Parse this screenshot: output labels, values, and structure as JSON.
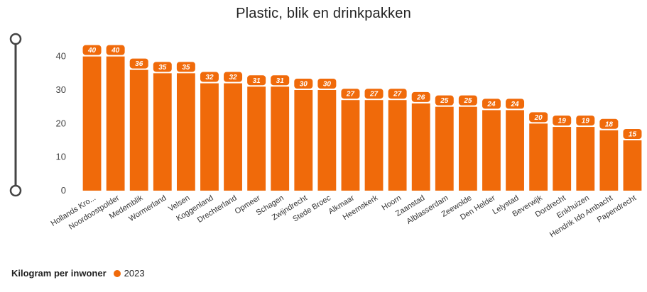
{
  "colors": {
    "bar": "#F06A0A",
    "axis_text": "#444444",
    "slider": "#444444"
  },
  "slider": {
    "icon": "range-slider-icon"
  },
  "legend": {
    "title": "Kilogram per inwoner",
    "series_label": "2023"
  },
  "chart_data": {
    "type": "bar",
    "title": "Plastic, blik en drinkpakken",
    "xlabel": "",
    "ylabel": "",
    "ylim": [
      0,
      45
    ],
    "yticks": [
      0,
      10,
      20,
      30,
      40
    ],
    "grid": false,
    "legend_position": "bottom-left",
    "categories": [
      "Hollands Kro...",
      "Noordoostpolder",
      "Medemblik",
      "Wormerland",
      "Velsen",
      "Koggenland",
      "Drechterland",
      "Opmeer",
      "Schagen",
      "Zwijndrecht",
      "Stede Broec",
      "Alkmaar",
      "Heemskerk",
      "Hoorn",
      "Zaanstad",
      "Alblasserdam",
      "Zeewolde",
      "Den Helder",
      "Lelystad",
      "Beverwijk",
      "Dordrecht",
      "Enkhuizen",
      "Hendrik Ido Ambacht",
      "Papendrecht"
    ],
    "series": [
      {
        "name": "2023",
        "values": [
          40,
          40,
          36,
          35,
          35,
          32,
          32,
          31,
          31,
          30,
          30,
          27,
          27,
          27,
          26,
          25,
          25,
          24,
          24,
          20,
          19,
          19,
          18,
          15
        ],
        "labels": [
          "40",
          "40",
          "36",
          "35",
          "35",
          "32",
          "32",
          "31",
          "31",
          "30",
          "30",
          "27",
          "27",
          "27",
          "26",
          "25",
          "25",
          "24",
          "24",
          "20",
          "19",
          "19",
          "18",
          "15"
        ]
      }
    ]
  }
}
